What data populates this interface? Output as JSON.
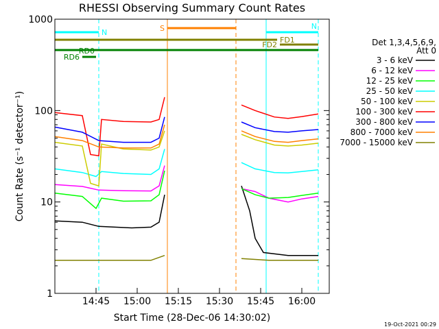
{
  "chart_data": {
    "type": "line",
    "title": "RHESSI Observing Summary Count Rates",
    "xlabel": "Start Time (28-Dec-06 14:30:02)",
    "ylabel": "Count Rate (s⁻¹ detector⁻¹)",
    "y_scale": "log",
    "ylim": [
      1,
      1000
    ],
    "y_ticks": [
      1,
      10,
      100,
      1000
    ],
    "y_tick_labels": [
      "1",
      "10",
      "100",
      "1000"
    ],
    "xlim": [
      "14:30",
      "16:10"
    ],
    "x_ticks": [
      "14:45",
      "15:00",
      "15:15",
      "15:30",
      "15:45",
      "16:00"
    ],
    "x_tick_labels": [
      "14:45",
      "15:00",
      "15:15",
      "15:30",
      "15:45",
      "16:00"
    ],
    "grid": false,
    "legend_header": [
      "Det 1,3,4,5,6,9,",
      "Att 0"
    ],
    "legend_position": "right",
    "series": [
      {
        "name": "3 - 6 keV",
        "color": "#000000",
        "points": [
          [
            "14:30",
            6.2
          ],
          [
            "14:40",
            6.0
          ],
          [
            "14:46",
            5.4
          ],
          [
            "14:58",
            5.2
          ],
          [
            "15:05",
            5.3
          ],
          [
            "15:08",
            6.0
          ],
          [
            "15:10",
            12.0
          ],
          [
            "15:38",
            15.0
          ],
          [
            "15:41",
            8.0
          ],
          [
            "15:43",
            4.0
          ],
          [
            "15:46",
            2.8
          ],
          [
            "15:55",
            2.6
          ],
          [
            "16:00",
            2.6
          ],
          [
            "16:06",
            2.6
          ]
        ]
      },
      {
        "name": "6 - 12 keV",
        "color": "#ff00ff",
        "points": [
          [
            "14:30",
            15.5
          ],
          [
            "14:40",
            14.8
          ],
          [
            "14:46",
            13.5
          ],
          [
            "14:55",
            13.3
          ],
          [
            "15:05",
            13.2
          ],
          [
            "15:08",
            15.0
          ],
          [
            "15:10",
            25.0
          ],
          [
            "15:38",
            14.0
          ],
          [
            "15:43",
            13.0
          ],
          [
            "15:48",
            11.0
          ],
          [
            "15:55",
            10.0
          ],
          [
            "16:00",
            10.8
          ],
          [
            "16:06",
            11.5
          ]
        ]
      },
      {
        "name": "12 - 25 keV",
        "color": "#00ff00",
        "points": [
          [
            "14:30",
            12.5
          ],
          [
            "14:40",
            11.5
          ],
          [
            "14:45",
            8.5
          ],
          [
            "14:47",
            11.0
          ],
          [
            "14:55",
            10.2
          ],
          [
            "15:05",
            10.3
          ],
          [
            "15:08",
            12.0
          ],
          [
            "15:10",
            22.0
          ],
          [
            "15:38",
            14.0
          ],
          [
            "15:43",
            12.0
          ],
          [
            "15:48",
            11.0
          ],
          [
            "15:55",
            11.2
          ],
          [
            "16:00",
            11.8
          ],
          [
            "16:06",
            12.5
          ]
        ]
      },
      {
        "name": "25 - 50 keV",
        "color": "#00ffff",
        "points": [
          [
            "14:30",
            23.0
          ],
          [
            "14:40",
            21.0
          ],
          [
            "14:45",
            19.0
          ],
          [
            "14:47",
            21.5
          ],
          [
            "14:55",
            20.5
          ],
          [
            "15:05",
            20.0
          ],
          [
            "15:08",
            23.0
          ],
          [
            "15:10",
            38.0
          ],
          [
            "15:38",
            27.0
          ],
          [
            "15:43",
            23.0
          ],
          [
            "15:50",
            21.0
          ],
          [
            "15:55",
            20.8
          ],
          [
            "16:00",
            21.5
          ],
          [
            "16:06",
            22.5
          ]
        ]
      },
      {
        "name": "50 - 100 keV",
        "color": "#cccc00",
        "points": [
          [
            "14:30",
            45.0
          ],
          [
            "14:40",
            41.0
          ],
          [
            "14:43",
            16.0
          ],
          [
            "14:46",
            15.0
          ],
          [
            "14:47",
            43.0
          ],
          [
            "14:55",
            38.0
          ],
          [
            "15:05",
            37.0
          ],
          [
            "15:08",
            40.0
          ],
          [
            "15:10",
            60.0
          ],
          [
            "15:38",
            55.0
          ],
          [
            "15:43",
            48.0
          ],
          [
            "15:50",
            42.0
          ],
          [
            "15:55",
            41.0
          ],
          [
            "16:00",
            42.0
          ],
          [
            "16:06",
            44.0
          ]
        ]
      },
      {
        "name": "100 - 300 keV",
        "color": "#ff0000",
        "points": [
          [
            "14:30",
            95.0
          ],
          [
            "14:40",
            88.0
          ],
          [
            "14:43",
            33.0
          ],
          [
            "14:46",
            32.0
          ],
          [
            "14:47",
            80.0
          ],
          [
            "14:55",
            76.0
          ],
          [
            "15:05",
            75.0
          ],
          [
            "15:08",
            80.0
          ],
          [
            "15:10",
            140.0
          ],
          [
            "15:38",
            115.0
          ],
          [
            "15:43",
            100.0
          ],
          [
            "15:50",
            85.0
          ],
          [
            "15:55",
            82.0
          ],
          [
            "16:00",
            86.0
          ],
          [
            "16:06",
            92.0
          ]
        ]
      },
      {
        "name": "300 - 800 keV",
        "color": "#0000ff",
        "points": [
          [
            "14:30",
            66.0
          ],
          [
            "14:40",
            58.0
          ],
          [
            "14:46",
            47.0
          ],
          [
            "14:55",
            45.0
          ],
          [
            "15:05",
            45.0
          ],
          [
            "15:08",
            50.0
          ],
          [
            "15:10",
            85.0
          ],
          [
            "15:38",
            75.0
          ],
          [
            "15:43",
            65.0
          ],
          [
            "15:50",
            59.0
          ],
          [
            "15:55",
            58.0
          ],
          [
            "16:00",
            60.0
          ],
          [
            "16:06",
            62.0
          ]
        ]
      },
      {
        "name": "800 - 7000 keV",
        "color": "#ff8000",
        "points": [
          [
            "14:30",
            52.0
          ],
          [
            "14:40",
            47.0
          ],
          [
            "14:46",
            40.0
          ],
          [
            "14:55",
            39.0
          ],
          [
            "15:05",
            39.0
          ],
          [
            "15:08",
            43.0
          ],
          [
            "15:10",
            70.0
          ],
          [
            "15:38",
            60.0
          ],
          [
            "15:43",
            52.0
          ],
          [
            "15:50",
            46.0
          ],
          [
            "15:55",
            45.0
          ],
          [
            "16:00",
            47.0
          ],
          [
            "16:06",
            49.0
          ]
        ]
      },
      {
        "name": "7000 - 15000 keV",
        "color": "#808000",
        "points": [
          [
            "14:30",
            2.3
          ],
          [
            "14:46",
            2.3
          ],
          [
            "15:05",
            2.3
          ],
          [
            "15:10",
            2.6
          ],
          [
            "15:38",
            2.4
          ],
          [
            "15:48",
            2.3
          ],
          [
            "16:06",
            2.3
          ]
        ]
      }
    ],
    "vertical_markers": [
      {
        "time": "14:30",
        "color": "#00ffff",
        "style": "solid"
      },
      {
        "time": "14:46",
        "color": "#00ffff",
        "style": "dashed"
      },
      {
        "time": "15:11",
        "color": "#ff8000",
        "style": "solid"
      },
      {
        "time": "15:36",
        "color": "#ff8000",
        "style": "dashed"
      },
      {
        "time": "15:47",
        "color": "#00ffff",
        "style": "solid"
      },
      {
        "time": "16:06",
        "color": "#00ffff",
        "style": "dashed"
      }
    ],
    "flag_bars": [
      {
        "label": "N",
        "color": "#00ffff",
        "start": "14:30",
        "end": "14:46",
        "label_side": "right"
      },
      {
        "label": "N",
        "color": "#00ffff",
        "start": "15:47",
        "end": "16:06",
        "label_side": "none"
      },
      {
        "label": "S",
        "color": "#ff8000",
        "start": "15:11",
        "end": "15:36",
        "label_side": "left"
      },
      {
        "label": "FD1",
        "color": "#808000",
        "start": "14:30",
        "end": "15:51",
        "label_side": "right"
      },
      {
        "label": "FD2",
        "color": "#808000",
        "start": "15:52",
        "end": "16:06",
        "label_side": "left"
      },
      {
        "label": "",
        "color": "#008000",
        "start": "14:30",
        "end": "16:06",
        "label_side": "none"
      },
      {
        "label": "RD0",
        "color": "#008000",
        "start": "14:40",
        "end": "14:45",
        "label_side": "above-right"
      },
      {
        "label": "RD6",
        "color": "#008000",
        "start": "14:40",
        "end": "14:45",
        "label_side": "left"
      }
    ],
    "timestamp": "19-Oct-2021 00:29"
  }
}
